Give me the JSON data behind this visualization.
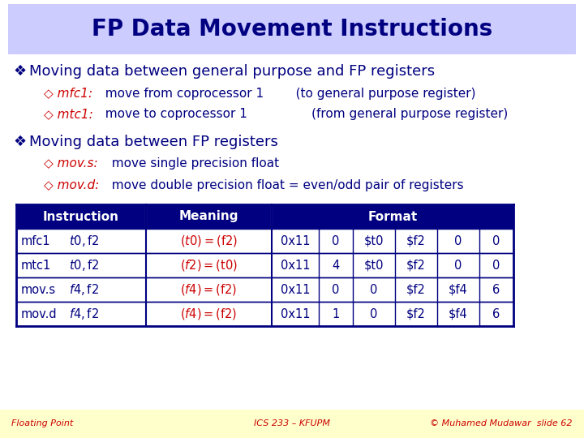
{
  "title": "FP Data Movement Instructions",
  "title_bg": "#ccccff",
  "slide_bg": "#ffffff",
  "footer_bg": "#ffffcc",
  "bullet_color": "#000080",
  "red_color": "#cc0000",
  "bullet1": "Moving data between general purpose and FP registers",
  "sub1a_label": "◇ mfc1:",
  "sub1a_rest": "  move from coprocessor 1",
  "sub1a_paren": "   (to general purpose register)",
  "sub1b_label": "◇ mtc1:",
  "sub1b_rest": "  move to coprocessor 1",
  "sub1b_paren": "       (from general purpose register)",
  "bullet2": "Moving data between FP registers",
  "sub2a_label": "◇ mov.s:",
  "sub2a_rest": "  move single precision float",
  "sub2b_label": "◇ mov.d:",
  "sub2b_rest": "  move double precision float = even/odd pair of registers",
  "table_header_bg": "#000080",
  "table_header_color": "#ffffff",
  "table_row_bg": "#ffffff",
  "table_border": "#000080",
  "table_rows": [
    {
      "instr": "mfc1",
      "args": "$t0, $f2",
      "meaning": "($t0) = ($f2)",
      "fmt": [
        "0x11",
        "0",
        "$t0",
        "$f2",
        "0",
        "0"
      ]
    },
    {
      "instr": "mtc1",
      "args": "$t0, $f2",
      "meaning": "($f2) = ($t0)",
      "fmt": [
        "0x11",
        "4",
        "$t0",
        "$f2",
        "0",
        "0"
      ]
    },
    {
      "instr": "mov.s",
      "args": "$f4, $f2",
      "meaning": "($f4) = ($f2)",
      "fmt": [
        "0x11",
        "0",
        "0",
        "$f2",
        "$f4",
        "6"
      ]
    },
    {
      "instr": "mov.d",
      "args": "$f4, $f2",
      "meaning": "($f4) = ($f2)",
      "fmt": [
        "0x11",
        "1",
        "0",
        "$f2",
        "$f4",
        "6"
      ]
    }
  ],
  "footer_left": "Floating Point",
  "footer_center": "ICS 233 – KFUPM",
  "footer_right": "© Muhamed Mudawar  slide 62"
}
